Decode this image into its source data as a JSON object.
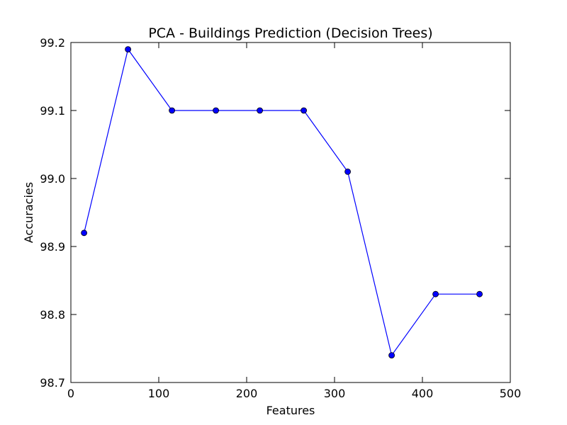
{
  "chart_data": {
    "type": "line",
    "title": "PCA - Buildings Prediction (Decision Trees)",
    "xlabel": "Features",
    "ylabel": "Accuracies",
    "xlim": [
      0,
      500
    ],
    "ylim": [
      98.7,
      99.2
    ],
    "xticks": [
      0,
      100,
      200,
      300,
      400,
      500
    ],
    "yticks": [
      98.7,
      98.8,
      98.9,
      99.0,
      99.1,
      99.2
    ],
    "xtick_labels": [
      "0",
      "100",
      "200",
      "300",
      "400",
      "500"
    ],
    "ytick_labels": [
      "98.7",
      "98.8",
      "98.9",
      "99.0",
      "99.1",
      "99.2"
    ],
    "grid": false,
    "series": [
      {
        "color": "#0000ff",
        "marker": "circle",
        "x": [
          15,
          65,
          115,
          165,
          215,
          265,
          315,
          365,
          415,
          465
        ],
        "y": [
          98.92,
          99.19,
          99.1,
          99.1,
          99.1,
          99.1,
          99.01,
          98.74,
          98.83,
          98.83
        ]
      }
    ]
  }
}
